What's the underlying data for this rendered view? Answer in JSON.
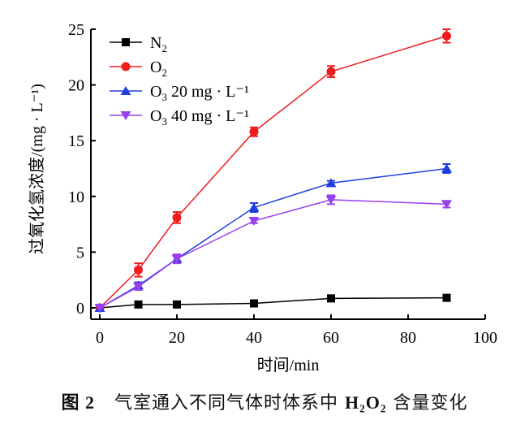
{
  "chart_data": {
    "type": "line",
    "xlabel": "时间/min",
    "ylabel": "过氧化氢浓度/(mg · L⁻¹)",
    "xlim": [
      0,
      100
    ],
    "ylim": [
      0,
      25
    ],
    "xticks": [
      0,
      20,
      40,
      60,
      80,
      100
    ],
    "yticks": [
      0,
      5,
      10,
      15,
      20,
      25
    ],
    "grid": false,
    "legend": "top-left",
    "x": [
      0,
      10,
      20,
      40,
      60,
      90
    ],
    "series": [
      {
        "name": "N₂",
        "base": "N",
        "sub": "2",
        "suffix": "",
        "color": "#000000",
        "marker": "square",
        "values": [
          0,
          0.3,
          0.3,
          0.4,
          0.85,
          0.9
        ],
        "errors": [
          0,
          0.1,
          0.1,
          0.1,
          0.15,
          0.15
        ]
      },
      {
        "name": "O₂",
        "base": "O",
        "sub": "2",
        "suffix": "",
        "color": "#ee1c1c",
        "marker": "circle",
        "values": [
          0,
          3.4,
          8.1,
          15.8,
          21.2,
          24.4
        ],
        "errors": [
          0,
          0.6,
          0.5,
          0.4,
          0.5,
          0.6
        ]
      },
      {
        "name": "O₃ 20 mg · L⁻¹",
        "base": "O",
        "sub": "3",
        "suffix": " 20 mg · L⁻¹",
        "color": "#1f3fe0",
        "marker": "triangle-up",
        "values": [
          0,
          2.0,
          4.4,
          9.0,
          11.2,
          12.5
        ],
        "errors": [
          0,
          0.3,
          0.3,
          0.4,
          0.2,
          0.4
        ]
      },
      {
        "name": "O₃ 40 mg · L⁻¹",
        "base": "O",
        "sub": "3",
        "suffix": " 40 mg · L⁻¹",
        "color": "#9a40f0",
        "marker": "triangle-down",
        "values": [
          0,
          1.9,
          4.4,
          7.8,
          9.7,
          9.3
        ],
        "errors": [
          0,
          0.3,
          0.4,
          0.2,
          0.4,
          0.3
        ]
      }
    ]
  },
  "caption": {
    "label": "图 2",
    "text_before": "气室通入不同气体时体系中",
    "formula": "H₂O₂",
    "text_after": "含量变化"
  }
}
